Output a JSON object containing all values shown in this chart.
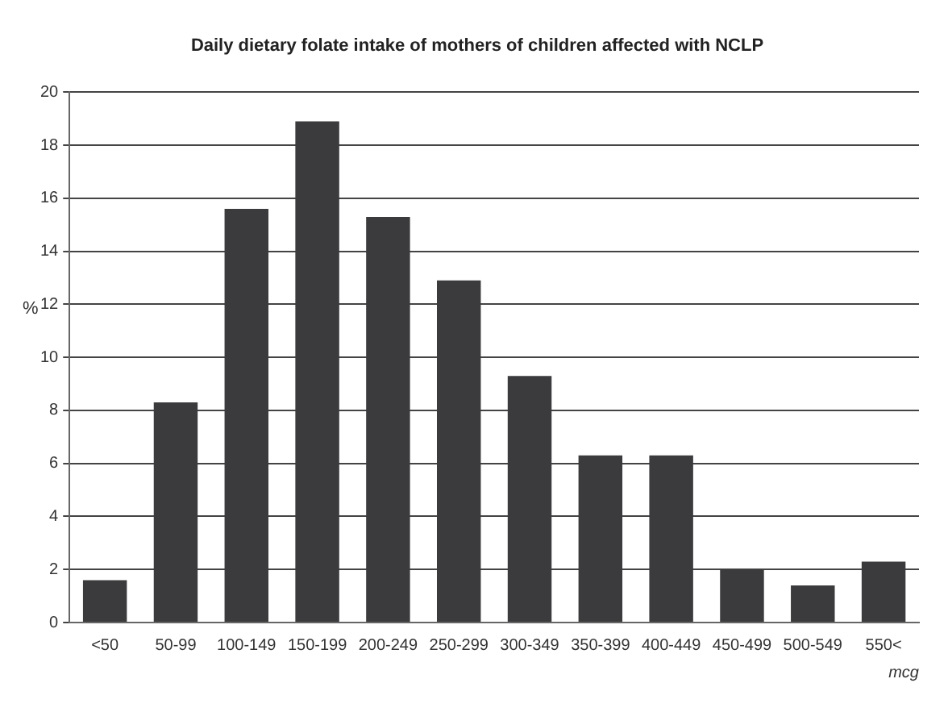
{
  "chart_data": {
    "type": "bar",
    "title": "Daily dietary folate intake of mothers of children affected with NCLP",
    "xlabel": "mcg",
    "ylabel": "%",
    "categories": [
      "<50",
      "50-99",
      "100-149",
      "150-199",
      "200-249",
      "250-299",
      "300-349",
      "350-399",
      "400-449",
      "450-499",
      "500-549",
      "550<"
    ],
    "values": [
      1.6,
      8.3,
      15.6,
      18.9,
      15.3,
      12.9,
      9.3,
      6.3,
      6.3,
      2.0,
      1.4,
      2.3
    ],
    "color": "#3b3b3d",
    "ylim": [
      0,
      20
    ],
    "yticks": [
      0,
      2,
      4,
      6,
      8,
      10,
      12,
      14,
      16,
      18,
      20
    ],
    "grid": "y",
    "legend": false
  }
}
